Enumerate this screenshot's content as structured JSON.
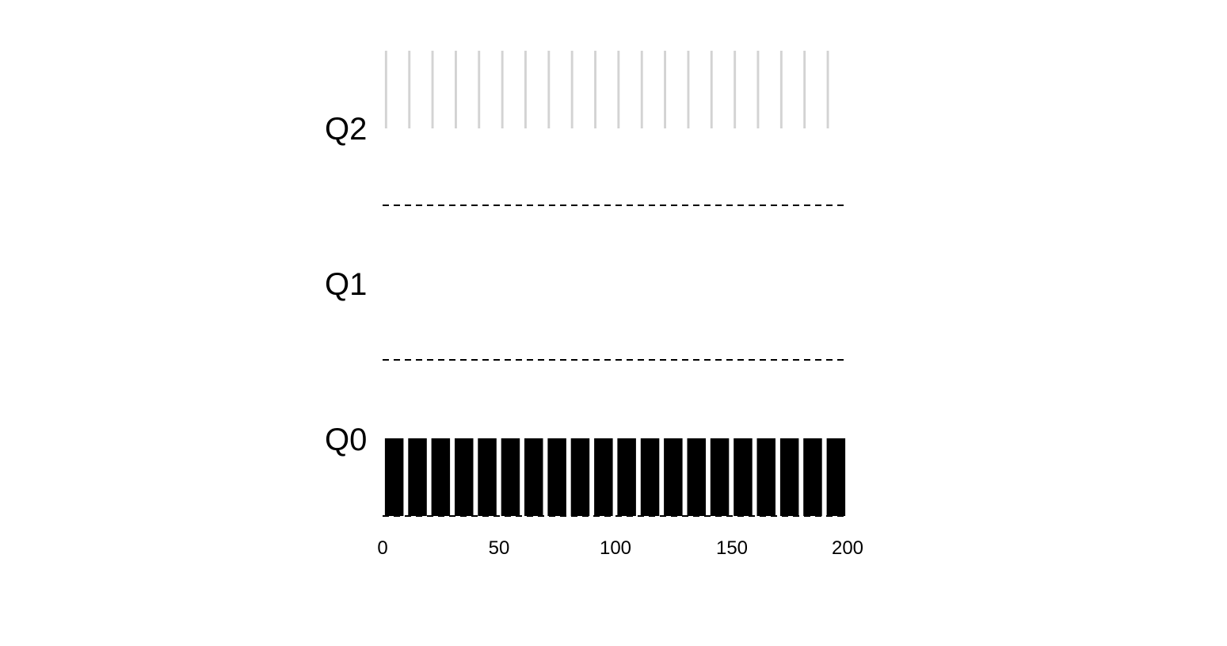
{
  "chart_data": {
    "type": "bar",
    "title": "",
    "xlabel": "",
    "ylabel": "",
    "xlim": [
      0,
      200
    ],
    "x_ticks": [
      "0",
      "50",
      "100",
      "150",
      "200"
    ],
    "grid": false,
    "queues": [
      {
        "name": "Q2",
        "label": "Q2",
        "color": "#d3d3d3",
        "style": "thin-stripes",
        "segments": [
          {
            "start": 1,
            "end": 2
          },
          {
            "start": 11,
            "end": 12
          },
          {
            "start": 21,
            "end": 22
          },
          {
            "start": 31,
            "end": 32
          },
          {
            "start": 41,
            "end": 42
          },
          {
            "start": 51,
            "end": 52
          },
          {
            "start": 61,
            "end": 62
          },
          {
            "start": 71,
            "end": 72
          },
          {
            "start": 81,
            "end": 82
          },
          {
            "start": 91,
            "end": 92
          },
          {
            "start": 101,
            "end": 102
          },
          {
            "start": 111,
            "end": 112
          },
          {
            "start": 121,
            "end": 122
          },
          {
            "start": 131,
            "end": 132
          },
          {
            "start": 141,
            "end": 142
          },
          {
            "start": 151,
            "end": 152
          },
          {
            "start": 161,
            "end": 162
          },
          {
            "start": 171,
            "end": 172
          },
          {
            "start": 181,
            "end": 182
          },
          {
            "start": 191,
            "end": 192
          }
        ]
      },
      {
        "name": "Q1",
        "label": "Q1",
        "color": "#000000",
        "segments": []
      },
      {
        "name": "Q0",
        "label": "Q0",
        "color": "#000000",
        "segments": [
          {
            "start": 1,
            "end": 9
          },
          {
            "start": 11,
            "end": 19
          },
          {
            "start": 21,
            "end": 29
          },
          {
            "start": 31,
            "end": 39
          },
          {
            "start": 41,
            "end": 49
          },
          {
            "start": 51,
            "end": 59
          },
          {
            "start": 61,
            "end": 69
          },
          {
            "start": 71,
            "end": 79
          },
          {
            "start": 81,
            "end": 89
          },
          {
            "start": 91,
            "end": 99
          },
          {
            "start": 101,
            "end": 109
          },
          {
            "start": 111,
            "end": 119
          },
          {
            "start": 121,
            "end": 129
          },
          {
            "start": 131,
            "end": 139
          },
          {
            "start": 141,
            "end": 149
          },
          {
            "start": 151,
            "end": 159
          },
          {
            "start": 161,
            "end": 169
          },
          {
            "start": 171,
            "end": 179
          },
          {
            "start": 181,
            "end": 189
          },
          {
            "start": 191,
            "end": 199
          }
        ]
      }
    ]
  }
}
